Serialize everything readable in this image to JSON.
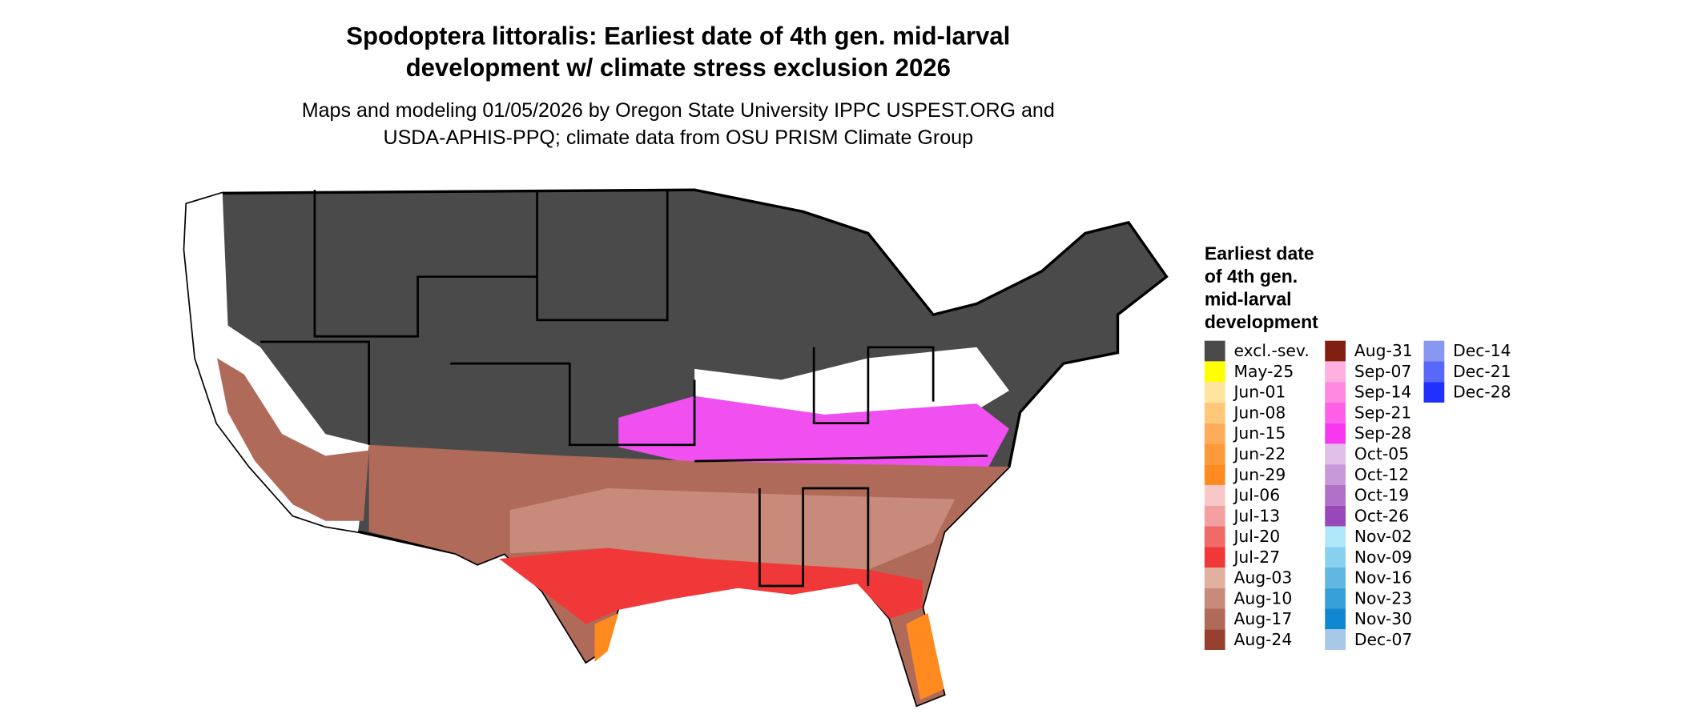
{
  "title": [
    "Spodoptera littoralis: Earliest date of 4th gen. mid-larval",
    "development w/ climate stress exclusion 2026"
  ],
  "subtitle": [
    "Maps and modeling 01/05/2026 by Oregon State University IPPC USPEST.ORG and",
    "USDA-APHIS-PPQ; climate data from OSU PRISM Climate Group"
  ],
  "legend": {
    "title": [
      "Earliest date",
      "of 4th gen.",
      "mid-larval",
      "development"
    ],
    "items": [
      {
        "label": "excl.-sev.",
        "color": "#4a4a4a"
      },
      {
        "label": "May-25",
        "color": "#ffff00"
      },
      {
        "label": "Jun-01",
        "color": "#ffe4a0"
      },
      {
        "label": "Jun-08",
        "color": "#ffc878"
      },
      {
        "label": "Jun-15",
        "color": "#ffac5a"
      },
      {
        "label": "Jun-22",
        "color": "#ff9a3c"
      },
      {
        "label": "Jun-29",
        "color": "#ff8a20"
      },
      {
        "label": "Jul-06",
        "color": "#f8c8c8"
      },
      {
        "label": "Jul-13",
        "color": "#f4a0a0"
      },
      {
        "label": "Jul-20",
        "color": "#f06a6a"
      },
      {
        "label": "Jul-27",
        "color": "#f03838"
      },
      {
        "label": "Aug-03",
        "color": "#e0b0a0"
      },
      {
        "label": "Aug-10",
        "color": "#c88a7a"
      },
      {
        "label": "Aug-17",
        "color": "#b06a5a"
      },
      {
        "label": "Aug-24",
        "color": "#984030"
      },
      {
        "label": "Aug-31",
        "color": "#802010"
      },
      {
        "label": "Sep-07",
        "color": "#ffb0e0"
      },
      {
        "label": "Sep-14",
        "color": "#ff88e0"
      },
      {
        "label": "Sep-21",
        "color": "#ff60e8"
      },
      {
        "label": "Sep-28",
        "color": "#f838f0"
      },
      {
        "label": "Oct-05",
        "color": "#e0c0e8"
      },
      {
        "label": "Oct-12",
        "color": "#c898d8"
      },
      {
        "label": "Oct-19",
        "color": "#b070c8"
      },
      {
        "label": "Oct-26",
        "color": "#9848b8"
      },
      {
        "label": "Nov-02",
        "color": "#b0e8fa"
      },
      {
        "label": "Nov-09",
        "color": "#88d0f0"
      },
      {
        "label": "Nov-16",
        "color": "#60b8e0"
      },
      {
        "label": "Nov-23",
        "color": "#38a0d8"
      },
      {
        "label": "Nov-30",
        "color": "#1088d0"
      },
      {
        "label": "Dec-07",
        "color": "#a8c8e8"
      },
      {
        "label": "Dec-14",
        "color": "#8898f0"
      },
      {
        "label": "Dec-21",
        "color": "#5868f8"
      },
      {
        "label": "Dec-28",
        "color": "#2030ff"
      }
    ]
  }
}
